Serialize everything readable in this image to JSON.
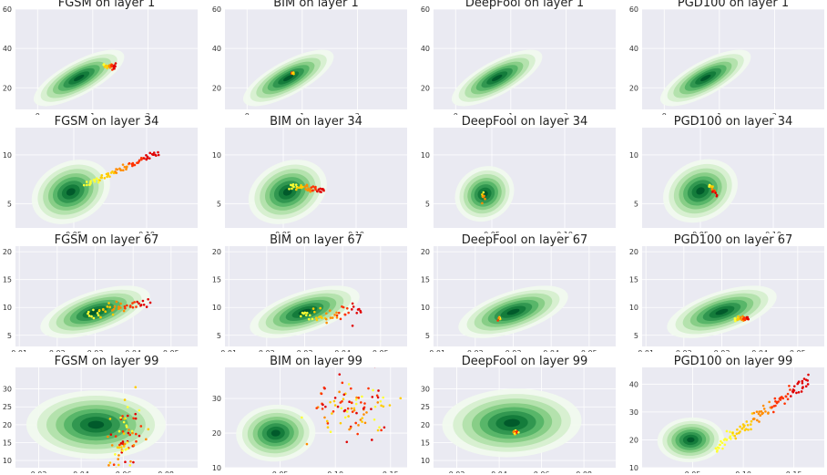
{
  "colors": {
    "panel_bg": "#eaeaf2",
    "grid": "#ffffff",
    "density_scale": [
      "#f1faee",
      "#d6efcf",
      "#b2e0ab",
      "#86cc85",
      "#55b467",
      "#2f964f",
      "#137a3a",
      "#00582a"
    ],
    "adversarial_scale": [
      "#ffff33",
      "#ffcc00",
      "#ff8c00",
      "#ff3300",
      "#e00000"
    ]
  },
  "chart_data": [
    {
      "type": "scatter",
      "title": "FGSM on layer 1",
      "xlim": [
        -0.4,
        2.9
      ],
      "ylim": [
        9,
        60
      ],
      "xticks": [
        0,
        1,
        2
      ],
      "yticks": [
        20,
        40,
        60
      ],
      "grid": true,
      "density": {
        "cx": 0.75,
        "cy": 25,
        "sx": 0.27,
        "sy": 4.8,
        "rho": 0.85
      },
      "adversarial": {
        "shape": "trail",
        "start": [
          1.2,
          31
        ],
        "end": [
          1.42,
          31
        ],
        "spread_y": 0.7,
        "n": 26
      }
    },
    {
      "type": "scatter",
      "title": "BIM on layer 1",
      "xlim": [
        -0.4,
        2.9
      ],
      "ylim": [
        9,
        60
      ],
      "xticks": [
        0,
        1,
        2
      ],
      "yticks": [
        20,
        40,
        60
      ],
      "grid": true,
      "density": {
        "cx": 0.75,
        "cy": 25,
        "sx": 0.27,
        "sy": 4.8,
        "rho": 0.85
      },
      "adversarial": {
        "shape": "cluster",
        "center": [
          0.84,
          27.5
        ],
        "spread": [
          0.02,
          0.6
        ],
        "n": 8
      }
    },
    {
      "type": "scatter",
      "title": "DeepFool on layer 1",
      "xlim": [
        -0.4,
        2.9
      ],
      "ylim": [
        9,
        60
      ],
      "xticks": [
        0,
        1,
        2
      ],
      "yticks": [
        20,
        40,
        60
      ],
      "grid": true,
      "density": {
        "cx": 0.75,
        "cy": 25,
        "sx": 0.27,
        "sy": 4.8,
        "rho": 0.85
      },
      "adversarial": {
        "shape": "none"
      }
    },
    {
      "type": "scatter",
      "title": "PGD100 on layer 1",
      "xlim": [
        -0.4,
        2.9
      ],
      "ylim": [
        9,
        60
      ],
      "xticks": [
        0,
        1,
        2
      ],
      "yticks": [
        20,
        40,
        60
      ],
      "grid": true,
      "density": {
        "cx": 0.75,
        "cy": 25,
        "sx": 0.27,
        "sy": 4.8,
        "rho": 0.85
      },
      "adversarial": {
        "shape": "none"
      }
    },
    {
      "type": "scatter",
      "title": "FGSM on layer 34",
      "xlim": [
        0.01,
        0.135
      ],
      "ylim": [
        2.5,
        12.8
      ],
      "xticks": [
        0.05,
        0.1
      ],
      "xticklabels": [
        "0.05",
        "0.10"
      ],
      "yticks": [
        5,
        10
      ],
      "grid": true,
      "density": {
        "cx": 0.048,
        "cy": 6.2,
        "sx": 0.0085,
        "sy": 1.2,
        "rho": 0.5
      },
      "adversarial": {
        "shape": "trail",
        "start": [
          0.058,
          6.9
        ],
        "end": [
          0.108,
          10.2
        ],
        "spread_y": 0.15,
        "n": 70
      }
    },
    {
      "type": "scatter",
      "title": "BIM on layer 34",
      "xlim": [
        0.01,
        0.135
      ],
      "ylim": [
        2.5,
        12.8
      ],
      "xticks": [
        0.05,
        0.1
      ],
      "xticklabels": [
        "0.05",
        "0.10"
      ],
      "yticks": [
        5,
        10
      ],
      "grid": true,
      "density": {
        "cx": 0.053,
        "cy": 6.2,
        "sx": 0.0085,
        "sy": 1.2,
        "rho": 0.5
      },
      "adversarial": {
        "shape": "trail",
        "start": [
          0.055,
          6.8
        ],
        "end": [
          0.078,
          6.4
        ],
        "spread_y": 0.2,
        "n": 45
      }
    },
    {
      "type": "scatter",
      "title": "DeepFool on layer 34",
      "xlim": [
        0.01,
        0.135
      ],
      "ylim": [
        2.5,
        12.8
      ],
      "xticks": [
        0.05,
        0.1
      ],
      "xticklabels": [
        "0.05",
        "0.10"
      ],
      "yticks": [
        5,
        10
      ],
      "grid": true,
      "density": {
        "cx": 0.045,
        "cy": 6.0,
        "sx": 0.006,
        "sy": 1.1,
        "rho": 0.5
      },
      "adversarial": {
        "shape": "cluster",
        "center": [
          0.044,
          5.8
        ],
        "spread": [
          0.0007,
          0.35
        ],
        "n": 8
      }
    },
    {
      "type": "scatter",
      "title": "PGD100 on layer 34",
      "xlim": [
        0.01,
        0.135
      ],
      "ylim": [
        2.5,
        12.8
      ],
      "xticks": [
        0.05,
        0.1
      ],
      "xticklabels": [
        "0.05",
        "0.10"
      ],
      "yticks": [
        5,
        10
      ],
      "grid": true,
      "density": {
        "cx": 0.05,
        "cy": 6.3,
        "sx": 0.008,
        "sy": 1.2,
        "rho": 0.5
      },
      "adversarial": {
        "shape": "trail",
        "start": [
          0.056,
          7.0
        ],
        "end": [
          0.061,
          5.9
        ],
        "spread_y": 0.1,
        "n": 18
      }
    },
    {
      "type": "scatter",
      "title": "FGSM on layer 67",
      "xlim": [
        0.009,
        0.057
      ],
      "ylim": [
        3,
        21
      ],
      "xticks": [
        0.01,
        0.02,
        0.03,
        0.04,
        0.05
      ],
      "xticklabels": [
        "0.01",
        "0.02",
        "0.03",
        "0.04",
        "0.05"
      ],
      "yticks": [
        5,
        10,
        15,
        20
      ],
      "grid": true,
      "density": {
        "cx": 0.03,
        "cy": 9.2,
        "sx": 0.0048,
        "sy": 1.5,
        "rho": 0.7
      },
      "adversarial": {
        "shape": "trail",
        "start": [
          0.028,
          8.9
        ],
        "end": [
          0.044,
          11.0
        ],
        "spread_y": 0.5,
        "n": 45
      }
    },
    {
      "type": "scatter",
      "title": "BIM on layer 67",
      "xlim": [
        0.009,
        0.057
      ],
      "ylim": [
        3,
        21
      ],
      "xticks": [
        0.01,
        0.02,
        0.03,
        0.04,
        0.05
      ],
      "xticklabels": [
        "0.01",
        "0.02",
        "0.03",
        "0.04",
        "0.05"
      ],
      "yticks": [
        5,
        10,
        15,
        20
      ],
      "grid": true,
      "density": {
        "cx": 0.03,
        "cy": 9.2,
        "sx": 0.0048,
        "sy": 1.5,
        "rho": 0.7
      },
      "adversarial": {
        "shape": "trail",
        "start": [
          0.029,
          8.4
        ],
        "end": [
          0.045,
          9.2
        ],
        "spread_y": 0.7,
        "n": 45
      }
    },
    {
      "type": "scatter",
      "title": "DeepFool on layer 67",
      "xlim": [
        0.009,
        0.057
      ],
      "ylim": [
        3,
        21
      ],
      "xticks": [
        0.01,
        0.02,
        0.03,
        0.04,
        0.05
      ],
      "xticklabels": [
        "0.01",
        "0.02",
        "0.03",
        "0.04",
        "0.05"
      ],
      "yticks": [
        5,
        10,
        15,
        20
      ],
      "grid": true,
      "density": {
        "cx": 0.03,
        "cy": 9.2,
        "sx": 0.0048,
        "sy": 1.5,
        "rho": 0.7
      },
      "adversarial": {
        "shape": "cluster",
        "center": [
          0.0265,
          8.0
        ],
        "spread": [
          0.0003,
          0.2
        ],
        "n": 6
      }
    },
    {
      "type": "scatter",
      "title": "PGD100 on layer 67",
      "xlim": [
        0.009,
        0.057
      ],
      "ylim": [
        3,
        21
      ],
      "xticks": [
        0.01,
        0.02,
        0.03,
        0.04,
        0.05
      ],
      "xticklabels": [
        "0.01",
        "0.02",
        "0.03",
        "0.04",
        "0.05"
      ],
      "yticks": [
        5,
        10,
        15,
        20
      ],
      "grid": true,
      "density": {
        "cx": 0.03,
        "cy": 9.2,
        "sx": 0.0048,
        "sy": 1.5,
        "rho": 0.7
      },
      "adversarial": {
        "shape": "trail",
        "start": [
          0.0335,
          8.0
        ],
        "end": [
          0.037,
          8.0
        ],
        "spread_y": 0.25,
        "n": 25
      }
    },
    {
      "type": "scatter",
      "title": "FGSM on layer 99",
      "xlim": [
        0.009,
        0.095
      ],
      "ylim": [
        8,
        36
      ],
      "xticks": [
        0.02,
        0.04,
        0.06,
        0.08
      ],
      "xticklabels": [
        "0.02",
        "0.04",
        "0.06",
        "0.08"
      ],
      "yticks": [
        10,
        15,
        20,
        25,
        30
      ],
      "grid": true,
      "density": {
        "cx": 0.047,
        "cy": 20,
        "sx": 0.011,
        "sy": 3.0,
        "rho": 0.0
      },
      "adversarial": {
        "shape": "cluster",
        "center": [
          0.061,
          17
        ],
        "spread": [
          0.004,
          4.5
        ],
        "n": 70
      }
    },
    {
      "type": "scatter",
      "title": "BIM on layer 99",
      "xlim": [
        0.0,
        0.165
      ],
      "ylim": [
        10,
        39
      ],
      "xticks": [
        0.05,
        0.1,
        0.15
      ],
      "xticklabels": [
        "0.05",
        "0.10",
        "0.15"
      ],
      "yticks": [
        10,
        20,
        30
      ],
      "grid": true,
      "density": {
        "cx": 0.046,
        "cy": 20,
        "sx": 0.012,
        "sy": 2.5,
        "rho": 0.1
      },
      "adversarial": {
        "shape": "cluster",
        "center": [
          0.115,
          27
        ],
        "spread": [
          0.018,
          4.0
        ],
        "n": 95
      }
    },
    {
      "type": "scatter",
      "title": "DeepFool on layer 99",
      "xlim": [
        0.009,
        0.095
      ],
      "ylim": [
        8,
        36
      ],
      "xticks": [
        0.02,
        0.04,
        0.06,
        0.08
      ],
      "xticklabels": [
        "0.02",
        "0.04",
        "0.06",
        "0.08"
      ],
      "yticks": [
        10,
        15,
        20,
        25,
        30
      ],
      "grid": true,
      "density": {
        "cx": 0.046,
        "cy": 20.5,
        "sx": 0.011,
        "sy": 3.0,
        "rho": 0.1
      },
      "adversarial": {
        "shape": "cluster",
        "center": [
          0.048,
          17.5
        ],
        "spread": [
          0.0008,
          0.6
        ],
        "n": 10
      }
    },
    {
      "type": "scatter",
      "title": "PGD100 on layer 99",
      "xlim": [
        0.0,
        0.18
      ],
      "ylim": [
        10,
        46
      ],
      "xticks": [
        0.05,
        0.1,
        0.15
      ],
      "xticklabels": [
        "0.05",
        "0.10",
        "0.15"
      ],
      "yticks": [
        10,
        20,
        30,
        40
      ],
      "grid": true,
      "density": {
        "cx": 0.048,
        "cy": 20,
        "sx": 0.011,
        "sy": 2.3,
        "rho": 0.1
      },
      "adversarial": {
        "shape": "trail",
        "start": [
          0.072,
          17
        ],
        "end": [
          0.165,
          41.5
        ],
        "spread_y": 1.1,
        "n": 110
      }
    }
  ]
}
